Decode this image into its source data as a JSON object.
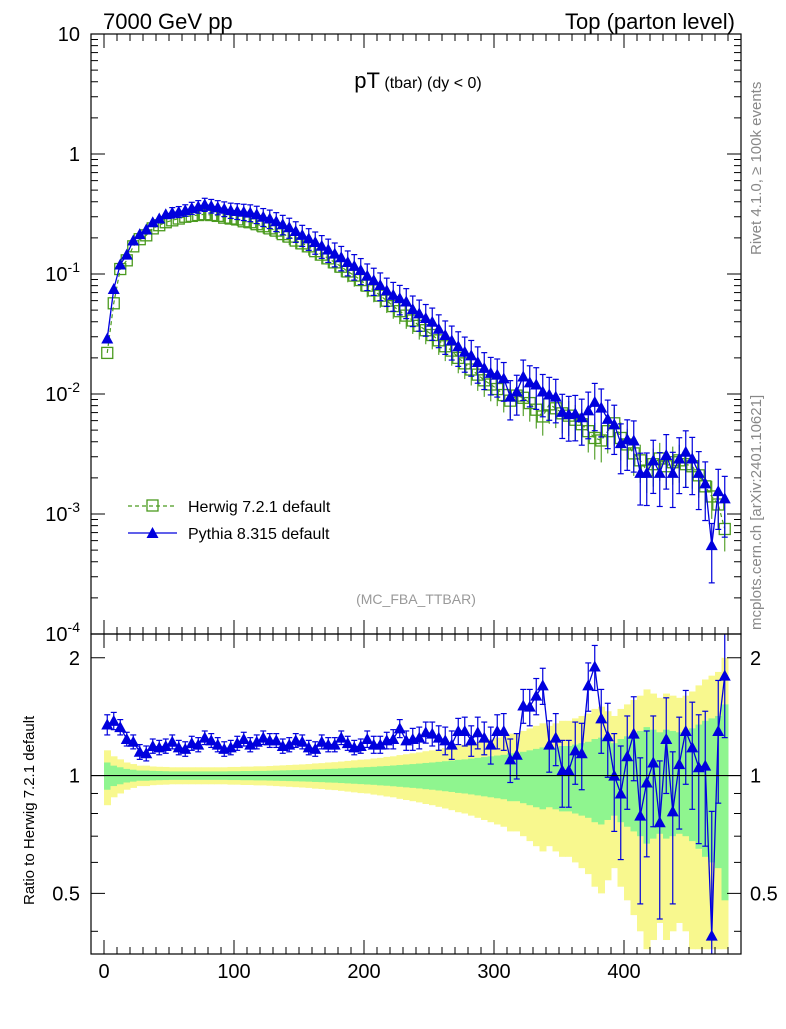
{
  "header": {
    "left": "7000 GeV pp",
    "right": "Top (parton level)"
  },
  "side_labels": {
    "rivet": "Rivet 4.1.0, ≥ 100k events",
    "mcplots": "mcplots.cern.ch [arXiv:2401.10621]"
  },
  "main": {
    "title_main": "pT",
    "title_sub": " (tbar)  (dy < 0)",
    "watermark": "(MC_FBA_TTBAR)",
    "yticks": [
      {
        "base": "10",
        "exp": "-4",
        "value": 0.0001
      },
      {
        "base": "10",
        "exp": "-3",
        "value": 0.001
      },
      {
        "base": "10",
        "exp": "-2",
        "value": 0.01
      },
      {
        "base": "10",
        "exp": "-1",
        "value": 0.1
      },
      {
        "base": "1",
        "exp": "",
        "value": 1
      },
      {
        "base": "10",
        "exp": "",
        "value": 10
      }
    ]
  },
  "ratio": {
    "ylabel": "Ratio to Herwig 7.2.1 default",
    "yticks": [
      "0.5",
      "1",
      "2"
    ]
  },
  "xaxis": {
    "ticks": [
      "0",
      "100",
      "200",
      "300",
      "400"
    ]
  },
  "legend": {
    "herwig": "Herwig 7.2.1 default",
    "pythia": "Pythia 8.315 default"
  },
  "colors": {
    "herwig": "#4a9a1e",
    "pythia": "#0000dd",
    "band_yellow": "#f8f88e",
    "band_green": "#8ff58f"
  },
  "chart_data": {
    "type": "line",
    "xlabel": "pT (tbar)",
    "xlim": [
      -10,
      490
    ],
    "ylim_main": [
      0.0001,
      10
    ],
    "ylim_ratio": [
      0.35,
      2.3
    ],
    "yscale": "log",
    "series": [
      {
        "name": "Herwig 7.2.1 default",
        "x": [
          2.5,
          7.5,
          12.5,
          17.5,
          22.5,
          27.5,
          32.5,
          37.5,
          42.5,
          47.5,
          52.5,
          57.5,
          62.5,
          67.5,
          72.5,
          77.5,
          82.5,
          87.5,
          92.5,
          97.5,
          102.5,
          107.5,
          112.5,
          117.5,
          122.5,
          127.5,
          132.5,
          137.5,
          142.5,
          147.5,
          152.5,
          157.5,
          162.5,
          167.5,
          172.5,
          177.5,
          182.5,
          187.5,
          192.5,
          197.5,
          202.5,
          207.5,
          212.5,
          217.5,
          222.5,
          227.5,
          232.5,
          237.5,
          242.5,
          247.5,
          252.5,
          257.5,
          262.5,
          267.5,
          272.5,
          277.5,
          282.5,
          287.5,
          292.5,
          297.5,
          302.5,
          307.5,
          312.5,
          317.5,
          322.5,
          327.5,
          332.5,
          337.5,
          342.5,
          347.5,
          352.5,
          357.5,
          362.5,
          367.5,
          372.5,
          377.5,
          382.5,
          387.5,
          392.5,
          397.5,
          402.5,
          407.5,
          412.5,
          417.5,
          422.5,
          427.5,
          432.5,
          437.5,
          442.5,
          447.5,
          452.5,
          457.5,
          462.5,
          467.5,
          472.5,
          477.5
        ],
        "values": [
          0.022,
          0.057,
          0.11,
          0.13,
          0.17,
          0.195,
          0.21,
          0.24,
          0.255,
          0.27,
          0.28,
          0.29,
          0.3,
          0.305,
          0.31,
          0.315,
          0.31,
          0.305,
          0.295,
          0.29,
          0.285,
          0.275,
          0.27,
          0.26,
          0.25,
          0.24,
          0.23,
          0.215,
          0.205,
          0.19,
          0.18,
          0.17,
          0.155,
          0.145,
          0.135,
          0.125,
          0.115,
          0.105,
          0.097,
          0.089,
          0.08,
          0.073,
          0.066,
          0.06,
          0.054,
          0.049,
          0.045,
          0.041,
          0.037,
          0.034,
          0.031,
          0.028,
          0.025,
          0.023,
          0.02,
          0.018,
          0.016,
          0.0145,
          0.013,
          0.012,
          0.011,
          0.0098,
          0.0088,
          0.0097,
          0.0093,
          0.0084,
          0.0074,
          0.0065,
          0.0082,
          0.0076,
          0.0069,
          0.0066,
          0.0061,
          0.0056,
          0.0049,
          0.0043,
          0.0041,
          0.0049,
          0.0057,
          0.0043,
          0.0038,
          0.0032,
          0.0028,
          0.0023,
          0.0026,
          0.0029,
          0.0025,
          0.0027,
          0.0028,
          0.0026,
          0.0025,
          0.0021,
          0.0017,
          0.0014,
          0.0012,
          0.00075
        ],
        "ratio_band_green": [
          0.08,
          0.06,
          0.05,
          0.04,
          0.035,
          0.03,
          0.03,
          0.028,
          0.027,
          0.026,
          0.025,
          0.025,
          0.025,
          0.025,
          0.025,
          0.025,
          0.025,
          0.025,
          0.025,
          0.026,
          0.026,
          0.027,
          0.027,
          0.028,
          0.028,
          0.029,
          0.03,
          0.031,
          0.032,
          0.033,
          0.034,
          0.035,
          0.037,
          0.038,
          0.04,
          0.041,
          0.043,
          0.045,
          0.047,
          0.049,
          0.051,
          0.053,
          0.056,
          0.058,
          0.061,
          0.064,
          0.067,
          0.07,
          0.073,
          0.077,
          0.08,
          0.084,
          0.088,
          0.092,
          0.097,
          0.1,
          0.105,
          0.11,
          0.115,
          0.12,
          0.125,
          0.13,
          0.14,
          0.14,
          0.15,
          0.16,
          0.17,
          0.18,
          0.17,
          0.18,
          0.19,
          0.19,
          0.2,
          0.21,
          0.22,
          0.24,
          0.25,
          0.23,
          0.21,
          0.24,
          0.26,
          0.28,
          0.3,
          0.33,
          0.31,
          0.29,
          0.31,
          0.3,
          0.29,
          0.3,
          0.32,
          0.35,
          0.38,
          0.4,
          0.42,
          0.52
        ],
        "ratio_band_yellow": [
          0.16,
          0.12,
          0.1,
          0.08,
          0.07,
          0.06,
          0.06,
          0.055,
          0.053,
          0.052,
          0.05,
          0.05,
          0.05,
          0.05,
          0.05,
          0.05,
          0.05,
          0.05,
          0.05,
          0.052,
          0.052,
          0.054,
          0.054,
          0.056,
          0.056,
          0.058,
          0.06,
          0.062,
          0.064,
          0.066,
          0.068,
          0.07,
          0.074,
          0.076,
          0.08,
          0.082,
          0.086,
          0.09,
          0.094,
          0.098,
          0.1,
          0.106,
          0.11,
          0.116,
          0.12,
          0.128,
          0.134,
          0.14,
          0.146,
          0.154,
          0.16,
          0.168,
          0.176,
          0.184,
          0.194,
          0.2,
          0.21,
          0.22,
          0.23,
          0.24,
          0.25,
          0.26,
          0.28,
          0.28,
          0.3,
          0.32,
          0.34,
          0.36,
          0.34,
          0.36,
          0.38,
          0.38,
          0.4,
          0.42,
          0.44,
          0.48,
          0.5,
          0.46,
          0.42,
          0.48,
          0.52,
          0.56,
          0.6,
          0.66,
          0.62,
          0.58,
          0.62,
          0.6,
          0.58,
          0.6,
          0.64,
          0.7,
          0.76,
          0.8,
          0.84,
          1.0
        ]
      },
      {
        "name": "Pythia 8.315 default",
        "x": [
          2.5,
          7.5,
          12.5,
          17.5,
          22.5,
          27.5,
          32.5,
          37.5,
          42.5,
          47.5,
          52.5,
          57.5,
          62.5,
          67.5,
          72.5,
          77.5,
          82.5,
          87.5,
          92.5,
          97.5,
          102.5,
          107.5,
          112.5,
          117.5,
          122.5,
          127.5,
          132.5,
          137.5,
          142.5,
          147.5,
          152.5,
          157.5,
          162.5,
          167.5,
          172.5,
          177.5,
          182.5,
          187.5,
          192.5,
          197.5,
          202.5,
          207.5,
          212.5,
          217.5,
          222.5,
          227.5,
          232.5,
          237.5,
          242.5,
          247.5,
          252.5,
          257.5,
          262.5,
          267.5,
          272.5,
          277.5,
          282.5,
          287.5,
          292.5,
          297.5,
          302.5,
          307.5,
          312.5,
          317.5,
          322.5,
          327.5,
          332.5,
          337.5,
          342.5,
          347.5,
          352.5,
          357.5,
          362.5,
          367.5,
          372.5,
          377.5,
          382.5,
          387.5,
          392.5,
          397.5,
          402.5,
          407.5,
          412.5,
          417.5,
          422.5,
          427.5,
          432.5,
          437.5,
          442.5,
          447.5,
          452.5,
          457.5,
          462.5,
          467.5,
          472.5,
          477.5
        ],
        "values": [
          0.029,
          0.075,
          0.12,
          0.145,
          0.19,
          0.215,
          0.235,
          0.27,
          0.29,
          0.315,
          0.325,
          0.33,
          0.34,
          0.355,
          0.365,
          0.38,
          0.37,
          0.36,
          0.35,
          0.34,
          0.335,
          0.33,
          0.325,
          0.315,
          0.3,
          0.29,
          0.275,
          0.26,
          0.245,
          0.228,
          0.212,
          0.198,
          0.185,
          0.172,
          0.16,
          0.148,
          0.138,
          0.126,
          0.117,
          0.108,
          0.097,
          0.089,
          0.081,
          0.073,
          0.067,
          0.063,
          0.059,
          0.051,
          0.047,
          0.043,
          0.04,
          0.035,
          0.031,
          0.028,
          0.025,
          0.0225,
          0.021,
          0.0185,
          0.0165,
          0.015,
          0.0145,
          0.0135,
          0.0095,
          0.0105,
          0.014,
          0.0125,
          0.012,
          0.0105,
          0.0099,
          0.0095,
          0.0071,
          0.0068,
          0.0069,
          0.0064,
          0.0073,
          0.0086,
          0.0077,
          0.0062,
          0.0056,
          0.0039,
          0.0042,
          0.0041,
          0.0022,
          0.0022,
          0.0028,
          0.0022,
          0.0031,
          0.0022,
          0.0029,
          0.0033,
          0.0029,
          0.0022,
          0.0018,
          0.00055,
          0.00155,
          0.00135
        ],
        "ratio": [
          1.35,
          1.38,
          1.33,
          1.24,
          1.22,
          1.15,
          1.14,
          1.19,
          1.18,
          1.19,
          1.22,
          1.18,
          1.17,
          1.21,
          1.2,
          1.25,
          1.23,
          1.2,
          1.17,
          1.18,
          1.21,
          1.24,
          1.2,
          1.22,
          1.25,
          1.23,
          1.23,
          1.19,
          1.2,
          1.23,
          1.22,
          1.18,
          1.17,
          1.22,
          1.2,
          1.2,
          1.25,
          1.21,
          1.18,
          1.19,
          1.24,
          1.2,
          1.2,
          1.23,
          1.24,
          1.32,
          1.23,
          1.24,
          1.25,
          1.29,
          1.28,
          1.25,
          1.23,
          1.2,
          1.3,
          1.3,
          1.23,
          1.29,
          1.25,
          1.2,
          1.3,
          1.3,
          1.1,
          1.13,
          1.51,
          1.5,
          1.6,
          1.7,
          1.2,
          1.25,
          1.03,
          1.03,
          1.16,
          1.14,
          1.7,
          1.9,
          1.4,
          1.26,
          1.0,
          0.9,
          1.12,
          1.28,
          0.79,
          0.96,
          1.08,
          0.76,
          1.24,
          0.81,
          1.07,
          1.3,
          1.18,
          1.05,
          1.06,
          0.39,
          1.3,
          1.8
        ],
        "ratio_err": [
          0.08,
          0.07,
          0.06,
          0.05,
          0.05,
          0.05,
          0.05,
          0.05,
          0.05,
          0.05,
          0.05,
          0.05,
          0.05,
          0.05,
          0.05,
          0.05,
          0.05,
          0.05,
          0.05,
          0.05,
          0.05,
          0.05,
          0.05,
          0.05,
          0.05,
          0.05,
          0.05,
          0.05,
          0.05,
          0.05,
          0.05,
          0.05,
          0.05,
          0.05,
          0.05,
          0.05,
          0.05,
          0.05,
          0.05,
          0.05,
          0.06,
          0.06,
          0.06,
          0.06,
          0.07,
          0.07,
          0.07,
          0.08,
          0.08,
          0.08,
          0.09,
          0.09,
          0.1,
          0.1,
          0.1,
          0.11,
          0.11,
          0.12,
          0.12,
          0.13,
          0.13,
          0.14,
          0.14,
          0.15,
          0.15,
          0.16,
          0.17,
          0.18,
          0.18,
          0.19,
          0.2,
          0.2,
          0.21,
          0.22,
          0.24,
          0.25,
          0.26,
          0.27,
          0.28,
          0.29,
          0.3,
          0.31,
          0.32,
          0.34,
          0.34,
          0.33,
          0.34,
          0.34,
          0.34,
          0.35,
          0.36,
          0.38,
          0.4,
          0.42,
          0.45,
          0.55
        ]
      }
    ]
  }
}
